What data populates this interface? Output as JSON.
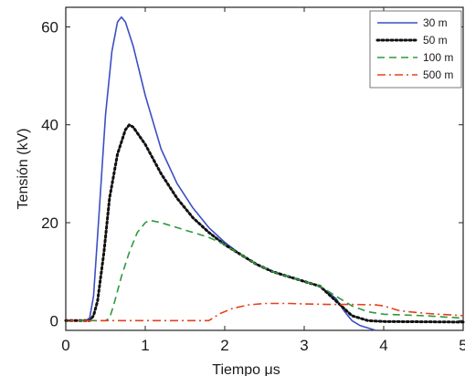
{
  "chart_data": {
    "type": "line",
    "xlabel": "Tiempo μs",
    "ylabel": "Tensión (kV)",
    "xlim": [
      0,
      5
    ],
    "ylim": [
      -2,
      64
    ],
    "xticks": [
      0,
      1,
      2,
      3,
      4,
      5
    ],
    "yticks": [
      0,
      20,
      40,
      60
    ],
    "x_tick_labels": [
      "0",
      "1",
      "2",
      "3",
      "4",
      "5"
    ],
    "y_tick_labels": [
      "0",
      "20",
      "40",
      "60"
    ],
    "grid": false,
    "legend_position": "top-right",
    "series": [
      {
        "name": "30 m",
        "color": "#3b4fc4",
        "style": "solid",
        "points": [
          [
            0,
            0
          ],
          [
            0.25,
            0
          ],
          [
            0.3,
            0.5
          ],
          [
            0.35,
            5
          ],
          [
            0.42,
            22
          ],
          [
            0.5,
            42
          ],
          [
            0.58,
            55
          ],
          [
            0.65,
            61
          ],
          [
            0.7,
            62
          ],
          [
            0.75,
            61
          ],
          [
            0.85,
            56
          ],
          [
            1.0,
            46
          ],
          [
            1.2,
            35
          ],
          [
            1.4,
            28
          ],
          [
            1.6,
            23
          ],
          [
            1.8,
            19
          ],
          [
            2.0,
            16
          ],
          [
            2.2,
            13.5
          ],
          [
            2.4,
            11.5
          ],
          [
            2.6,
            10
          ],
          [
            2.8,
            9
          ],
          [
            3.0,
            8
          ],
          [
            3.2,
            7
          ],
          [
            3.4,
            4.5
          ],
          [
            3.5,
            2
          ],
          [
            3.6,
            0
          ],
          [
            3.7,
            -1
          ],
          [
            3.9,
            -2
          ]
        ]
      },
      {
        "name": "50 m",
        "color": "#111111",
        "style": "dotted",
        "points": [
          [
            0,
            0
          ],
          [
            0.3,
            0
          ],
          [
            0.35,
            1
          ],
          [
            0.4,
            4
          ],
          [
            0.48,
            14
          ],
          [
            0.55,
            25
          ],
          [
            0.65,
            34
          ],
          [
            0.75,
            39
          ],
          [
            0.8,
            40
          ],
          [
            0.85,
            39.5
          ],
          [
            1.0,
            36
          ],
          [
            1.2,
            30
          ],
          [
            1.4,
            25
          ],
          [
            1.6,
            21
          ],
          [
            1.8,
            18
          ],
          [
            2.0,
            15.5
          ],
          [
            2.2,
            13.5
          ],
          [
            2.4,
            11.5
          ],
          [
            2.6,
            10
          ],
          [
            2.8,
            9
          ],
          [
            3.0,
            8
          ],
          [
            3.2,
            7
          ],
          [
            3.4,
            4
          ],
          [
            3.5,
            2.5
          ],
          [
            3.6,
            1
          ],
          [
            3.8,
            0
          ],
          [
            4.0,
            -0.2
          ],
          [
            5.0,
            -0.3
          ]
        ]
      },
      {
        "name": "100 m",
        "color": "#2e9a3c",
        "style": "dashed",
        "points": [
          [
            0,
            0
          ],
          [
            0.5,
            0
          ],
          [
            0.55,
            0.5
          ],
          [
            0.6,
            3
          ],
          [
            0.7,
            9
          ],
          [
            0.8,
            14
          ],
          [
            0.9,
            18
          ],
          [
            1.0,
            20
          ],
          [
            1.05,
            20.5
          ],
          [
            1.2,
            20
          ],
          [
            1.4,
            19
          ],
          [
            1.6,
            18
          ],
          [
            1.8,
            17
          ],
          [
            2.0,
            15.5
          ],
          [
            2.2,
            13.5
          ],
          [
            2.4,
            11.5
          ],
          [
            2.6,
            10
          ],
          [
            2.8,
            9
          ],
          [
            3.0,
            8
          ],
          [
            3.2,
            7
          ],
          [
            3.4,
            5
          ],
          [
            3.6,
            3
          ],
          [
            3.8,
            1.8
          ],
          [
            4.0,
            1.3
          ],
          [
            4.5,
            1
          ],
          [
            5.0,
            0.5
          ]
        ]
      },
      {
        "name": "500 m",
        "color": "#e8401a",
        "style": "dashdot",
        "points": [
          [
            0,
            0
          ],
          [
            1.8,
            0
          ],
          [
            1.85,
            0.5
          ],
          [
            1.95,
            1.5
          ],
          [
            2.1,
            2.5
          ],
          [
            2.3,
            3.2
          ],
          [
            2.5,
            3.5
          ],
          [
            2.8,
            3.5
          ],
          [
            3.0,
            3.4
          ],
          [
            3.3,
            3.3
          ],
          [
            3.6,
            3.3
          ],
          [
            3.9,
            3.2
          ],
          [
            4.0,
            3
          ],
          [
            4.1,
            2.5
          ],
          [
            4.2,
            2
          ],
          [
            4.5,
            1.5
          ],
          [
            5.0,
            1
          ]
        ]
      }
    ]
  }
}
